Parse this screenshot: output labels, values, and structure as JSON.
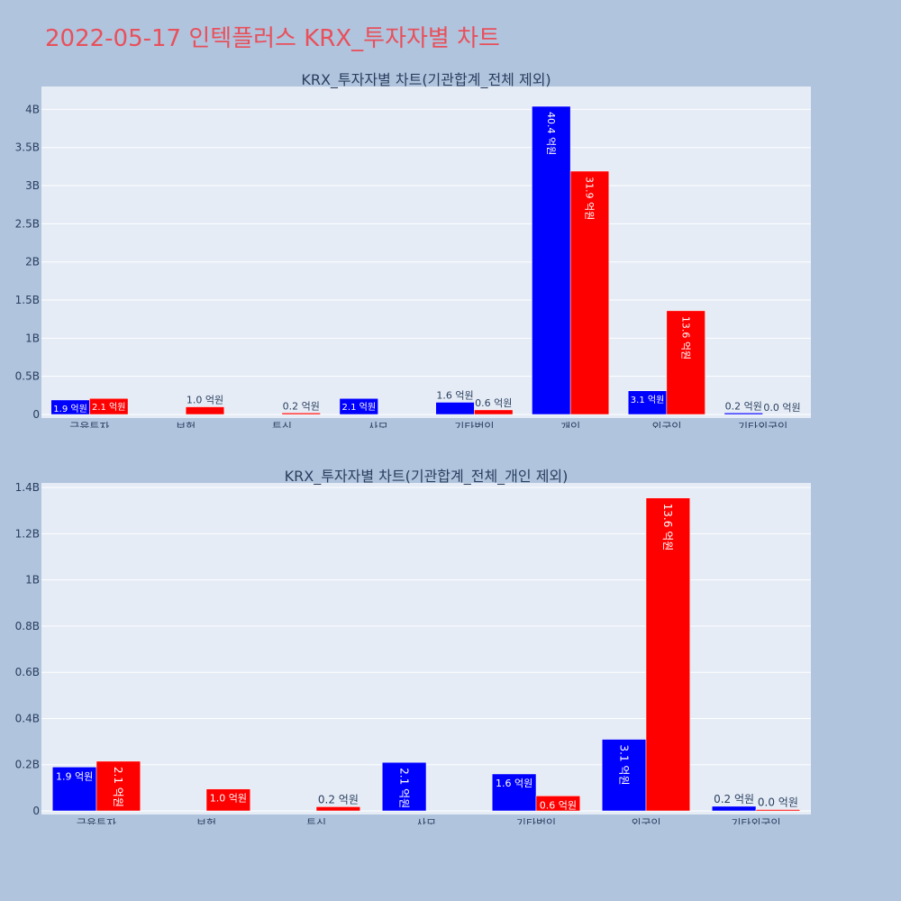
{
  "page_title": "2022-05-17 인텍플러스 KRX_투자자별 차트",
  "colors": {
    "buy": "#0000ff",
    "sell": "#ff0000",
    "plot_bg": "#e5ecf6",
    "page_bg": "#b0c4de",
    "title": "#e8505b"
  },
  "chart_data": [
    {
      "type": "bar",
      "title": "KRX_투자자별 차트(기관합계_전체 제외)",
      "categories": [
        "금융투자",
        "보험",
        "투신",
        "사모",
        "기타법인",
        "개인",
        "외국인",
        "기타외국인"
      ],
      "ylim": [
        0,
        4300000000
      ],
      "ytick_values": [
        0,
        500000000,
        1000000000,
        1500000000,
        2000000000,
        2500000000,
        3000000000,
        3500000000,
        4000000000
      ],
      "ytick_labels": [
        "0",
        "0.5B",
        "1B",
        "1.5B",
        "2B",
        "2.5B",
        "3B",
        "3.5B",
        "4B"
      ],
      "grid": true,
      "series": [
        {
          "color": "#0000ff",
          "values": [
            190000000,
            0,
            0,
            210000000,
            160000000,
            4040000000,
            310000000,
            20000000
          ],
          "labels": [
            "1.9 억원",
            "",
            "",
            "2.1 억원",
            "1.6 억원",
            "40.4 억원",
            "3.1 억원",
            "0.2 억원"
          ]
        },
        {
          "color": "#ff0000",
          "values": [
            210000000,
            100000000,
            20000000,
            0,
            60000000,
            3190000000,
            1360000000,
            0
          ],
          "labels": [
            "2.1 억원",
            "1.0 억원",
            "0.2 억원",
            "",
            "0.6 억원",
            "31.9 억원",
            "13.6 억원",
            "0.0 억원"
          ]
        }
      ]
    },
    {
      "type": "bar",
      "title": "KRX_투자자별 차트(기관합계_전체_개인 제외)",
      "categories": [
        "금융투자",
        "보험",
        "투신",
        "사모",
        "기타법인",
        "외국인",
        "기타외국인"
      ],
      "ylim": [
        0,
        1420000000
      ],
      "ytick_values": [
        0,
        200000000,
        400000000,
        600000000,
        800000000,
        1000000000,
        1200000000,
        1400000000
      ],
      "ytick_labels": [
        "0",
        "0.2B",
        "0.4B",
        "0.6B",
        "0.8B",
        "1B",
        "1.2B",
        "1.4B"
      ],
      "grid": true,
      "series": [
        {
          "color": "#0000ff",
          "values": [
            190000000,
            0,
            0,
            210000000,
            160000000,
            310000000,
            20000000
          ],
          "labels": [
            "1.9 억원",
            "",
            "",
            "2.1 억원",
            "1.6 억원",
            "3.1 억원",
            "0.2 억원"
          ]
        },
        {
          "color": "#ff0000",
          "values": [
            215000000,
            95000000,
            18000000,
            0,
            65000000,
            1355000000,
            2000000
          ],
          "labels": [
            "2.1 억원",
            "1.0 억원",
            "0.2 억원",
            "",
            "0.6 억원",
            "13.6 억원",
            "0.0 억원"
          ]
        }
      ]
    }
  ]
}
